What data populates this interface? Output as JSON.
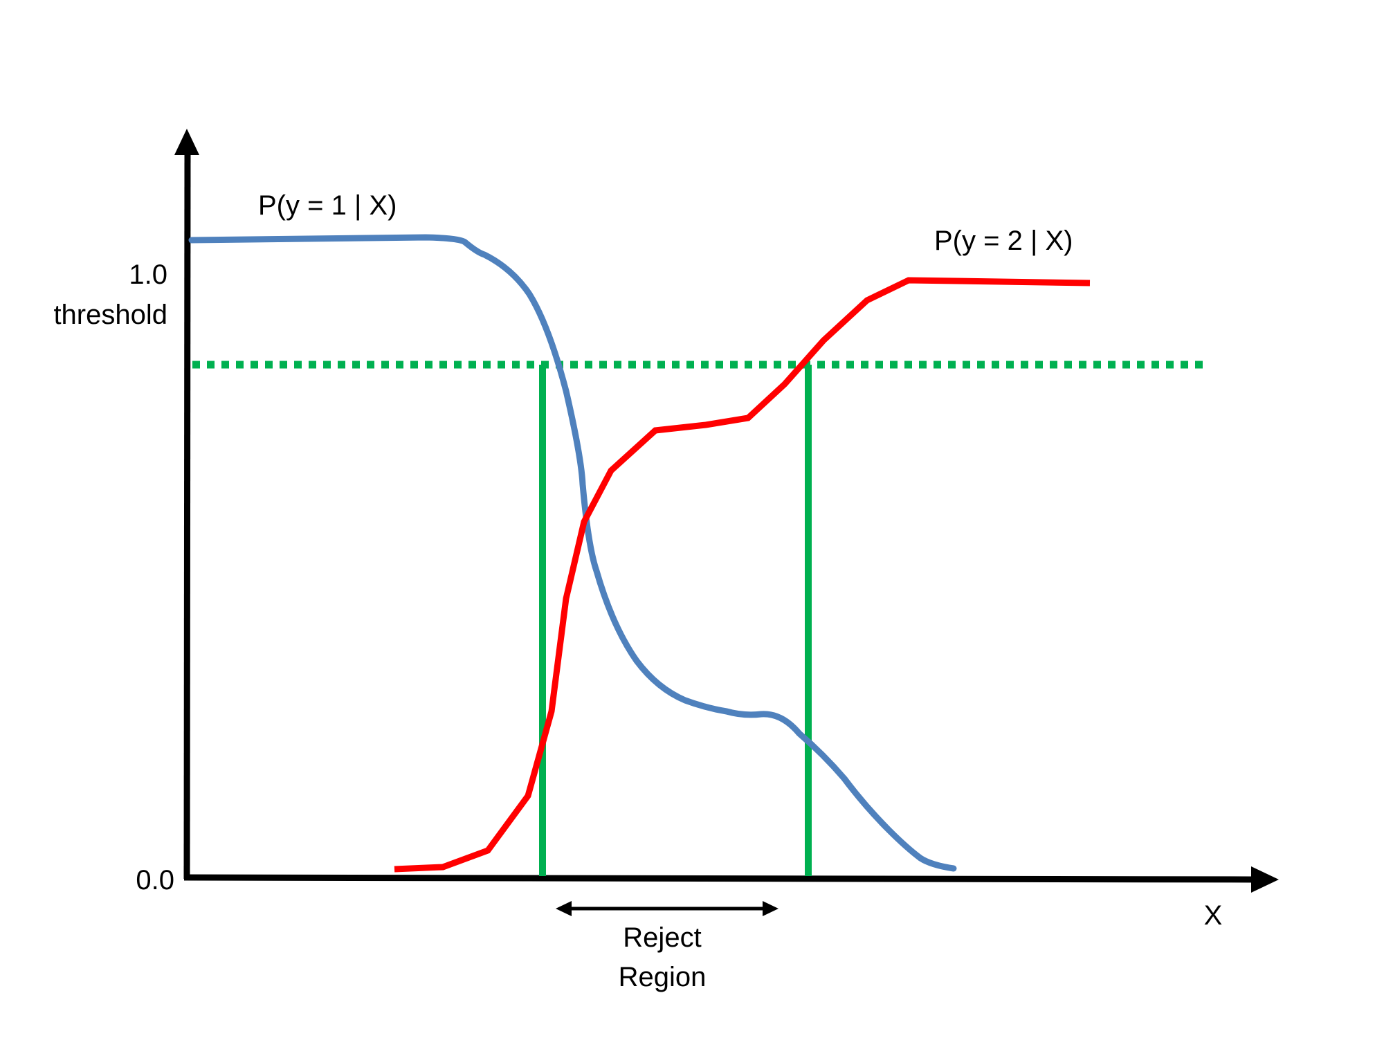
{
  "labels": {
    "curve1": "P(y = 1 | X)",
    "curve2": "P(y = 2 | X)",
    "y_top": "1.0",
    "threshold": "threshold",
    "y_zero": "0.0",
    "x_axis": "X",
    "reject_line1": "Reject",
    "reject_line2": "Region"
  },
  "colors": {
    "axis": "#000000",
    "curve1": "#4F81BD",
    "curve2": "#FF0000",
    "threshold": "#00B050",
    "text": "#000000"
  }
}
